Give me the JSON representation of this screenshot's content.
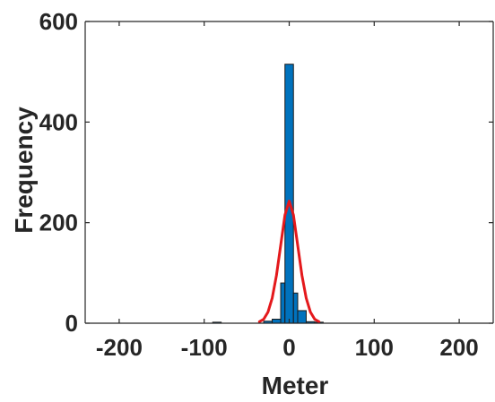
{
  "chart_data": {
    "type": "bar",
    "title": "",
    "xlabel": "Meter",
    "ylabel": "Frequency",
    "xlim": [
      -240,
      240
    ],
    "ylim": [
      0,
      600
    ],
    "x_ticks": [
      -200,
      -100,
      0,
      100,
      200
    ],
    "y_ticks": [
      0,
      200,
      400,
      600
    ],
    "x_tick_labels": [
      "-200",
      "-100",
      "0",
      "100",
      "200"
    ],
    "y_tick_labels": [
      "0",
      "200",
      "400",
      "600"
    ],
    "grid": false,
    "legend": "none",
    "histogram": {
      "bin_edges": [
        -90,
        -80,
        -40,
        -30,
        -20,
        -10,
        -5,
        5,
        10,
        20,
        30,
        40
      ],
      "bins": [
        {
          "x0": -90,
          "x1": -80,
          "count": 2
        },
        {
          "x0": -30,
          "x1": -20,
          "count": 4
        },
        {
          "x0": -20,
          "x1": -10,
          "count": 8
        },
        {
          "x0": -10,
          "x1": -5,
          "count": 80
        },
        {
          "x0": -5,
          "x1": 5,
          "count": 515
        },
        {
          "x0": 5,
          "x1": 10,
          "count": 60
        },
        {
          "x0": 10,
          "x1": 20,
          "count": 25
        },
        {
          "x0": 20,
          "x1": 30,
          "count": 3
        },
        {
          "x0": 30,
          "x1": 40,
          "count": 2
        }
      ]
    },
    "series": [
      {
        "type": "line",
        "description": "normal fit",
        "x": [
          -35,
          -30,
          -25,
          -20,
          -15,
          -10,
          -5,
          0,
          5,
          10,
          15,
          20,
          25,
          30,
          35
        ],
        "y": [
          3,
          8,
          22,
          50,
          95,
          155,
          215,
          243,
          215,
          155,
          95,
          50,
          22,
          8,
          3
        ]
      }
    ],
    "colors": {
      "bar_fill": "#0072BD",
      "bar_edge": "#1a1a1a",
      "fit_line": "#E4191C",
      "axis": "#262626"
    }
  }
}
